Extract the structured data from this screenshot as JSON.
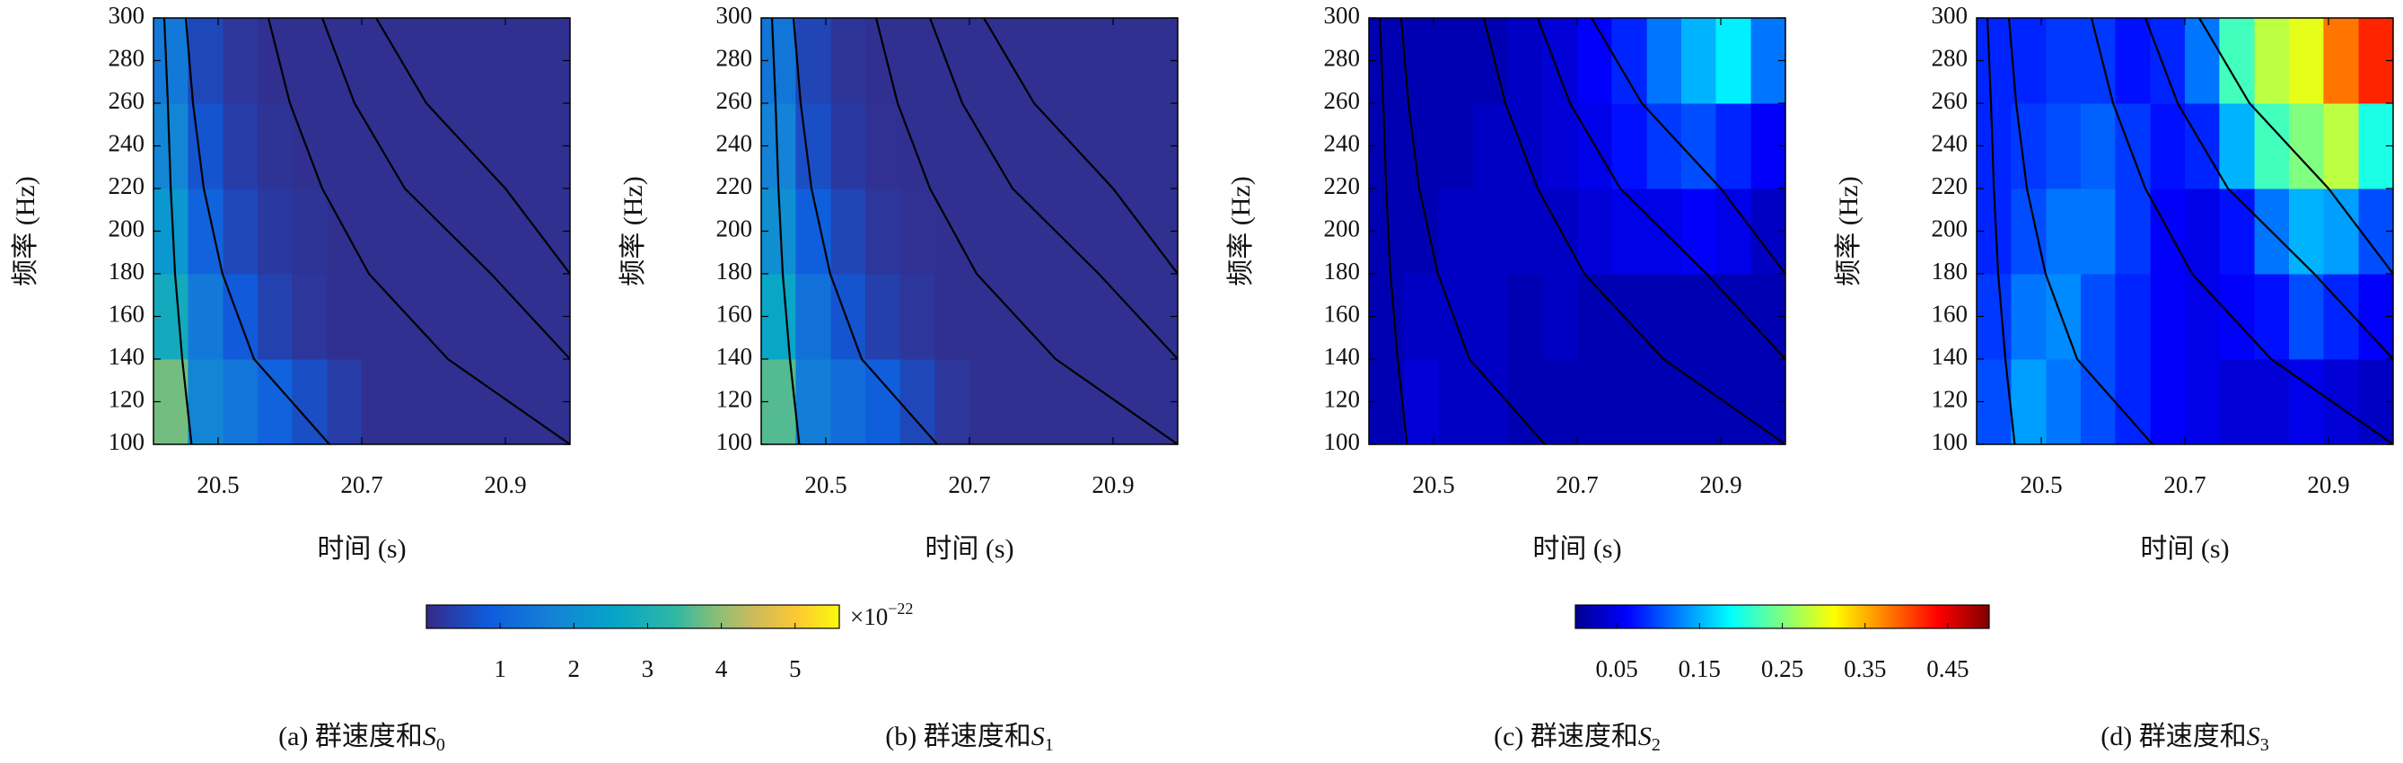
{
  "chart_data": [
    {
      "type": "heatmap",
      "xlabel": "时间 (s)",
      "ylabel": "频率 (Hz)",
      "caption": {
        "prefix": "(a) 群速度和",
        "symbol": "S",
        "subscript": "0"
      },
      "xlim": [
        20.41,
        20.99
      ],
      "ylim": [
        100,
        300
      ],
      "xticks": [
        20.5,
        20.7,
        20.9
      ],
      "yticks": [
        100,
        120,
        140,
        160,
        180,
        200,
        220,
        240,
        260,
        280,
        300
      ],
      "colormap": "parula",
      "clim": [
        0,
        5.6
      ],
      "colorbar": {
        "ticks": [
          1,
          2,
          3,
          4,
          5
        ],
        "multiplier": {
          "base": "×10",
          "exponent": "−22"
        }
      },
      "xbins": [
        20.41,
        20.458,
        20.507,
        20.555,
        20.603,
        20.652,
        20.7,
        20.748,
        20.797,
        20.845,
        20.893,
        20.942,
        20.99
      ],
      "ybins": [
        100,
        140,
        180,
        220,
        260,
        300
      ],
      "z": [
        [
          3.8,
          1.8,
          1.4,
          1.0,
          0.6,
          0.3,
          0.1,
          0.1,
          0.1,
          0.1,
          0.1,
          0.1
        ],
        [
          2.8,
          1.5,
          0.8,
          0.4,
          0.2,
          0.1,
          0.1,
          0.1,
          0.1,
          0.1,
          0.1,
          0.1
        ],
        [
          2.2,
          1.0,
          0.5,
          0.25,
          0.15,
          0.1,
          0.1,
          0.1,
          0.1,
          0.1,
          0.1,
          0.1
        ],
        [
          1.8,
          0.7,
          0.3,
          0.15,
          0.1,
          0.1,
          0.1,
          0.1,
          0.1,
          0.1,
          0.1,
          0.1
        ],
        [
          1.5,
          0.5,
          0.2,
          0.1,
          0.1,
          0.1,
          0.1,
          0.1,
          0.1,
          0.1,
          0.1,
          0.1
        ]
      ],
      "curves": [
        {
          "t": [
            20.463,
            20.45,
            20.44,
            20.434,
            20.43,
            20.425
          ],
          "f": [
            100,
            140,
            180,
            220,
            260,
            300
          ]
        },
        {
          "t": [
            20.655,
            20.55,
            20.506,
            20.48,
            20.465,
            20.455
          ],
          "f": [
            100,
            140,
            180,
            220,
            260,
            300
          ]
        },
        {
          "t": [
            20.99,
            20.82,
            20.71,
            20.645,
            20.6,
            20.57
          ],
          "f": [
            100,
            140,
            180,
            220,
            260,
            300
          ]
        },
        {
          "t": [
            20.99,
            20.88,
            20.76,
            20.69,
            20.645
          ],
          "f": [
            140,
            180,
            220,
            260,
            300
          ]
        },
        {
          "t": [
            20.99,
            20.9,
            20.79,
            20.72
          ],
          "f": [
            180,
            220,
            260,
            300
          ]
        }
      ]
    },
    {
      "type": "heatmap",
      "xlabel": "时间 (s)",
      "ylabel": "频率 (Hz)",
      "caption": {
        "prefix": "(b) 群速度和",
        "symbol": "S",
        "subscript": "1"
      },
      "xlim": [
        20.41,
        20.99
      ],
      "ylim": [
        100,
        300
      ],
      "xticks": [
        20.5,
        20.7,
        20.9
      ],
      "yticks": [
        100,
        120,
        140,
        160,
        180,
        200,
        220,
        240,
        260,
        280,
        300
      ],
      "colormap": "parula",
      "clim": [
        0,
        5.6
      ],
      "xbins": [
        20.41,
        20.458,
        20.507,
        20.555,
        20.603,
        20.652,
        20.7,
        20.748,
        20.797,
        20.845,
        20.893,
        20.942,
        20.99
      ],
      "ybins": [
        100,
        140,
        180,
        220,
        260,
        300
      ],
      "z": [
        [
          3.6,
          1.6,
          1.2,
          0.9,
          0.5,
          0.2,
          0.1,
          0.1,
          0.1,
          0.1,
          0.1,
          0.1
        ],
        [
          2.6,
          1.3,
          0.7,
          0.35,
          0.2,
          0.1,
          0.1,
          0.1,
          0.1,
          0.1,
          0.1,
          0.1
        ],
        [
          2.0,
          0.9,
          0.45,
          0.2,
          0.12,
          0.1,
          0.1,
          0.1,
          0.1,
          0.1,
          0.1,
          0.1
        ],
        [
          1.7,
          0.6,
          0.25,
          0.12,
          0.1,
          0.1,
          0.1,
          0.1,
          0.1,
          0.1,
          0.1,
          0.1
        ],
        [
          1.4,
          0.45,
          0.18,
          0.1,
          0.1,
          0.1,
          0.1,
          0.1,
          0.1,
          0.1,
          0.1,
          0.1
        ]
      ],
      "curves": [
        {
          "t": [
            20.463,
            20.45,
            20.44,
            20.434,
            20.43,
            20.425
          ],
          "f": [
            100,
            140,
            180,
            220,
            260,
            300
          ]
        },
        {
          "t": [
            20.655,
            20.55,
            20.506,
            20.48,
            20.465,
            20.455
          ],
          "f": [
            100,
            140,
            180,
            220,
            260,
            300
          ]
        },
        {
          "t": [
            20.99,
            20.82,
            20.71,
            20.645,
            20.6,
            20.57
          ],
          "f": [
            100,
            140,
            180,
            220,
            260,
            300
          ]
        },
        {
          "t": [
            20.99,
            20.88,
            20.76,
            20.69,
            20.645
          ],
          "f": [
            140,
            180,
            220,
            260,
            300
          ]
        },
        {
          "t": [
            20.99,
            20.9,
            20.79,
            20.72
          ],
          "f": [
            180,
            220,
            260,
            300
          ]
        }
      ]
    },
    {
      "type": "heatmap",
      "xlabel": "时间 (s)",
      "ylabel": "频率 (Hz)",
      "caption": {
        "prefix": "(c) 群速度和",
        "symbol": "S",
        "subscript": "2"
      },
      "xlim": [
        20.41,
        20.99
      ],
      "ylim": [
        100,
        300
      ],
      "xticks": [
        20.5,
        20.7,
        20.9
      ],
      "yticks": [
        100,
        120,
        140,
        160,
        180,
        200,
        220,
        240,
        260,
        280,
        300
      ],
      "colormap": "jet",
      "clim": [
        0,
        0.5
      ],
      "colorbar": {
        "ticks": [
          0.05,
          0.15,
          0.25,
          0.35,
          0.45
        ]
      },
      "xbins": [
        20.41,
        20.458,
        20.507,
        20.555,
        20.603,
        20.652,
        20.7,
        20.748,
        20.797,
        20.845,
        20.893,
        20.942,
        20.99
      ],
      "ybins": [
        100,
        140,
        180,
        220,
        260,
        300
      ],
      "z": [
        [
          0.02,
          0.04,
          0.03,
          0.03,
          0.02,
          0.02,
          0.02,
          0.02,
          0.02,
          0.02,
          0.02,
          0.02
        ],
        [
          0.02,
          0.03,
          0.03,
          0.03,
          0.02,
          0.03,
          0.02,
          0.02,
          0.02,
          0.02,
          0.02,
          0.02
        ],
        [
          0.02,
          0.02,
          0.03,
          0.03,
          0.03,
          0.03,
          0.04,
          0.05,
          0.05,
          0.06,
          0.05,
          0.03
        ],
        [
          0.02,
          0.02,
          0.02,
          0.03,
          0.03,
          0.04,
          0.05,
          0.07,
          0.09,
          0.1,
          0.08,
          0.06
        ],
        [
          0.02,
          0.02,
          0.02,
          0.02,
          0.03,
          0.04,
          0.06,
          0.08,
          0.12,
          0.15,
          0.18,
          0.12
        ]
      ],
      "curves": [
        {
          "t": [
            20.463,
            20.45,
            20.44,
            20.434,
            20.43,
            20.425
          ],
          "f": [
            100,
            140,
            180,
            220,
            260,
            300
          ]
        },
        {
          "t": [
            20.655,
            20.55,
            20.506,
            20.48,
            20.465,
            20.455
          ],
          "f": [
            100,
            140,
            180,
            220,
            260,
            300
          ]
        },
        {
          "t": [
            20.99,
            20.82,
            20.71,
            20.645,
            20.6,
            20.57
          ],
          "f": [
            100,
            140,
            180,
            220,
            260,
            300
          ]
        },
        {
          "t": [
            20.99,
            20.88,
            20.76,
            20.69,
            20.645
          ],
          "f": [
            140,
            180,
            220,
            260,
            300
          ]
        },
        {
          "t": [
            20.99,
            20.9,
            20.79,
            20.72
          ],
          "f": [
            180,
            220,
            260,
            300
          ]
        }
      ]
    },
    {
      "type": "heatmap",
      "xlabel": "时间 (s)",
      "ylabel": "频率 (Hz)",
      "caption": {
        "prefix": "(d) 群速度和",
        "symbol": "S",
        "subscript": "3"
      },
      "xlim": [
        20.41,
        20.99
      ],
      "ylim": [
        100,
        300
      ],
      "xticks": [
        20.5,
        20.7,
        20.9
      ],
      "yticks": [
        100,
        120,
        140,
        160,
        180,
        200,
        220,
        240,
        260,
        280,
        300
      ],
      "colormap": "jet",
      "clim": [
        0,
        0.5
      ],
      "xbins": [
        20.41,
        20.458,
        20.507,
        20.555,
        20.603,
        20.652,
        20.7,
        20.748,
        20.797,
        20.845,
        20.893,
        20.942,
        20.99
      ],
      "ybins": [
        100,
        140,
        180,
        220,
        260,
        300
      ],
      "z": [
        [
          0.1,
          0.14,
          0.12,
          0.1,
          0.08,
          0.06,
          0.05,
          0.04,
          0.04,
          0.05,
          0.04,
          0.03
        ],
        [
          0.09,
          0.12,
          0.13,
          0.1,
          0.08,
          0.06,
          0.05,
          0.06,
          0.07,
          0.1,
          0.08,
          0.06
        ],
        [
          0.08,
          0.1,
          0.12,
          0.12,
          0.09,
          0.06,
          0.05,
          0.07,
          0.12,
          0.15,
          0.14,
          0.1
        ],
        [
          0.08,
          0.09,
          0.1,
          0.11,
          0.09,
          0.07,
          0.08,
          0.15,
          0.22,
          0.25,
          0.28,
          0.2
        ],
        [
          0.08,
          0.08,
          0.09,
          0.09,
          0.07,
          0.08,
          0.12,
          0.22,
          0.28,
          0.3,
          0.38,
          0.42
        ]
      ],
      "curves": [
        {
          "t": [
            20.463,
            20.45,
            20.44,
            20.434,
            20.43,
            20.425
          ],
          "f": [
            100,
            140,
            180,
            220,
            260,
            300
          ]
        },
        {
          "t": [
            20.655,
            20.55,
            20.506,
            20.48,
            20.465,
            20.455
          ],
          "f": [
            100,
            140,
            180,
            220,
            260,
            300
          ]
        },
        {
          "t": [
            20.99,
            20.82,
            20.71,
            20.645,
            20.6,
            20.57
          ],
          "f": [
            100,
            140,
            180,
            220,
            260,
            300
          ]
        },
        {
          "t": [
            20.99,
            20.88,
            20.76,
            20.69,
            20.645
          ],
          "f": [
            140,
            180,
            220,
            260,
            300
          ]
        },
        {
          "t": [
            20.99,
            20.9,
            20.79,
            20.72
          ],
          "f": [
            180,
            220,
            260,
            300
          ]
        }
      ]
    }
  ]
}
